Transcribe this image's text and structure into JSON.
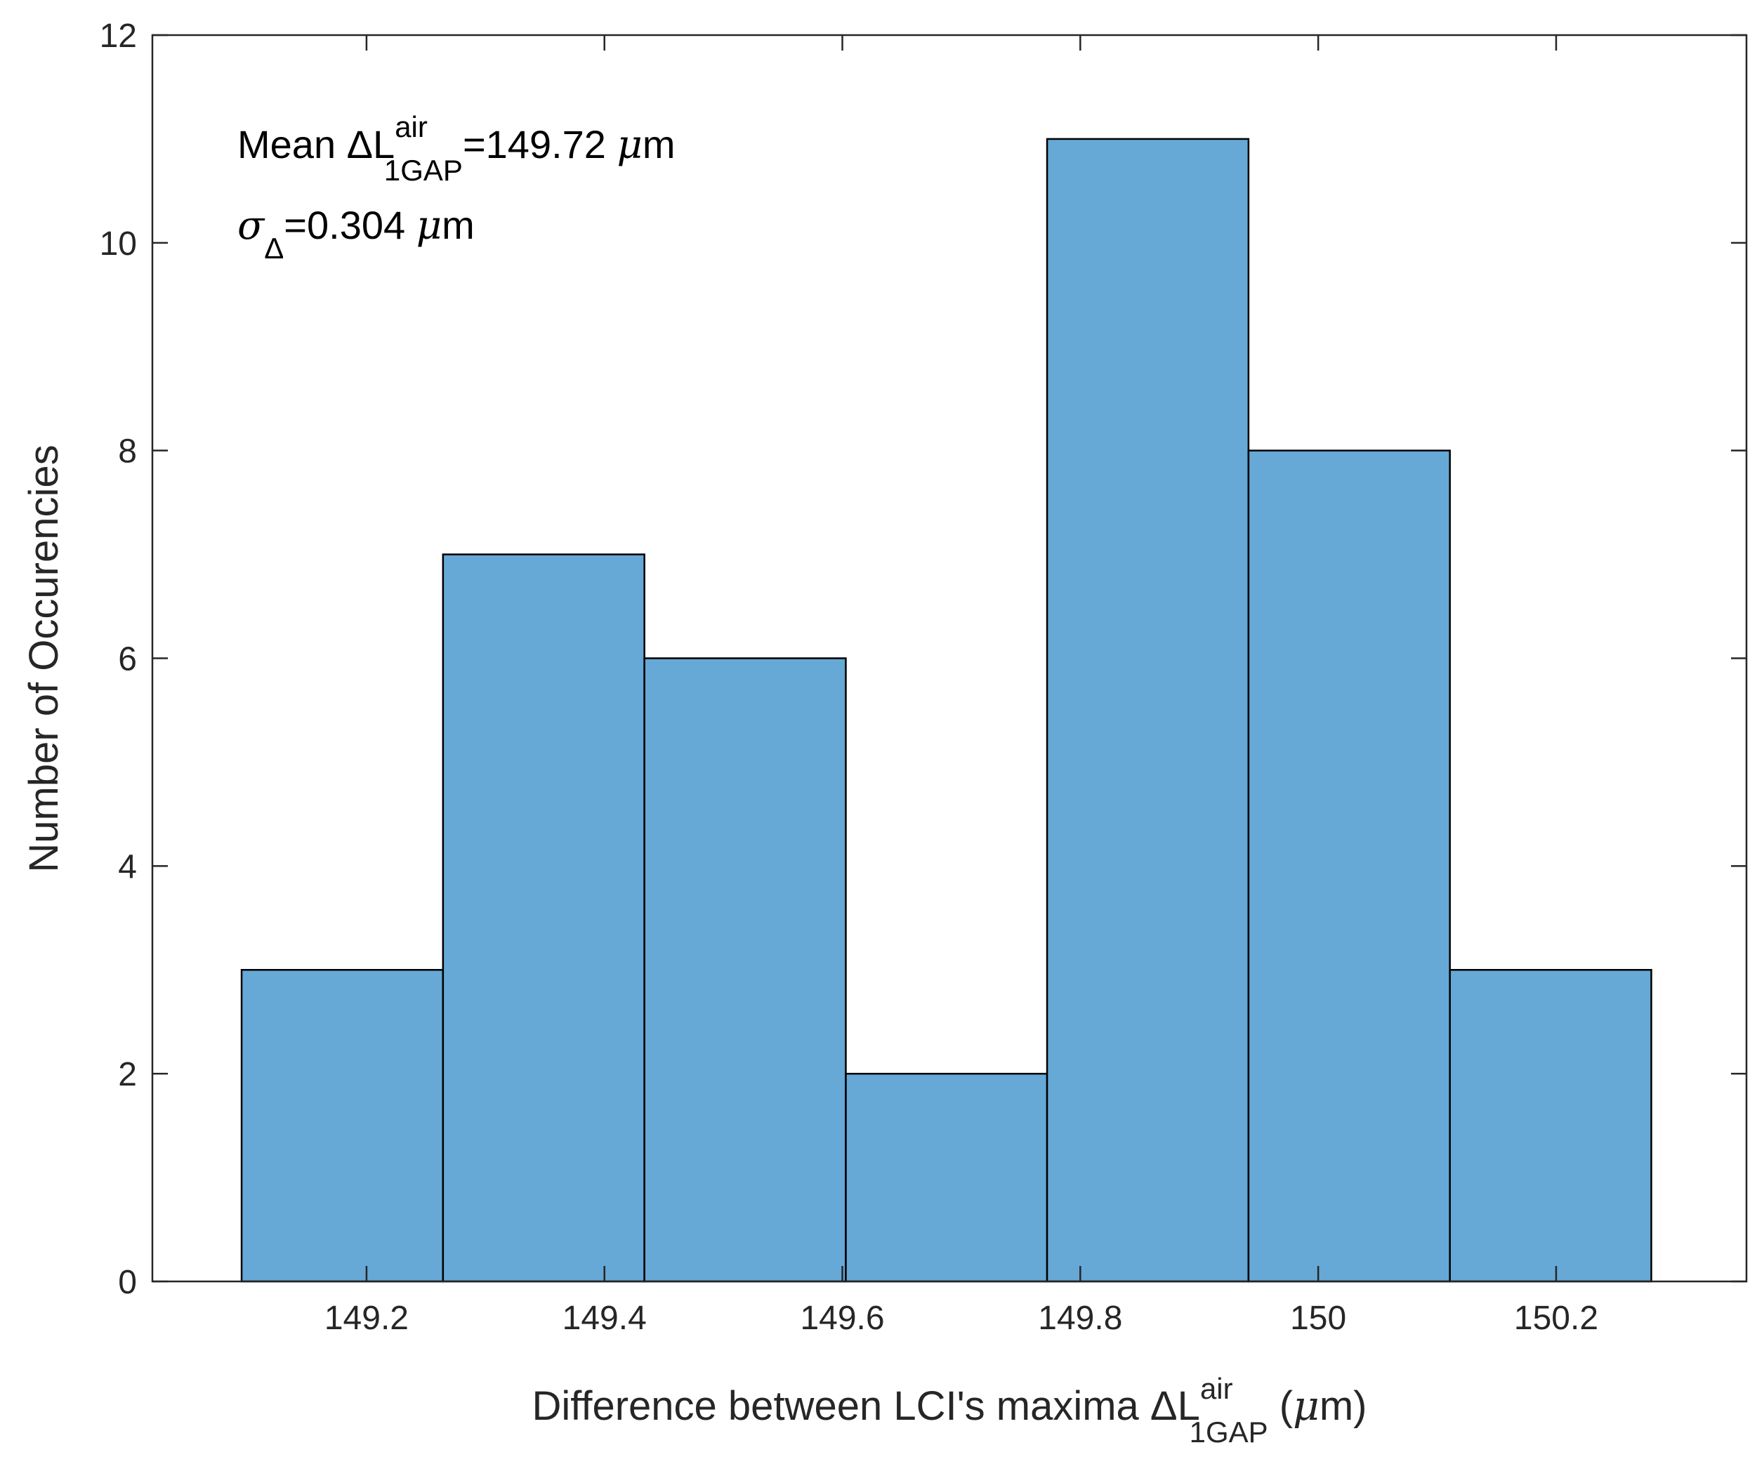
{
  "colors": {
    "bar_fill": "#66a8d6",
    "bar_edge": "#000000",
    "axis": "#262626",
    "text": "#262626"
  },
  "chart_data": {
    "type": "histogram",
    "bin_edges": [
      149.095,
      149.2643,
      149.4336,
      149.6029,
      149.7721,
      149.9414,
      150.1107,
      150.28
    ],
    "counts": [
      3,
      7,
      6,
      2,
      11,
      8,
      3
    ],
    "xlim": [
      149.02,
      150.36
    ],
    "ylim": [
      0,
      12
    ],
    "xticks": [
      149.2,
      149.4,
      149.6,
      149.8,
      150,
      150.2
    ],
    "xtick_labels": [
      "149.2",
      "149.4",
      "149.6",
      "149.8",
      "150",
      "150.2"
    ],
    "yticks": [
      0,
      2,
      4,
      6,
      8,
      10,
      12
    ],
    "ytick_labels": [
      "0",
      "2",
      "4",
      "6",
      "8",
      "10",
      "12"
    ],
    "ylabel": "Number of Occurencies",
    "xlabel": {
      "prefix": "Difference between LCI's maxima ",
      "delta": "Δ",
      "symbol": "L",
      "superscript": "air",
      "subscript": "1GAP",
      "paren_open": " (",
      "mu": "μ",
      "unit": "m)"
    },
    "annotations": {
      "mean": {
        "label": "Mean ",
        "delta": "Δ",
        "symbol": "L",
        "superscript": "air",
        "subscript": "1GAP",
        "value": "=149.72 ",
        "mu": "μ",
        "unit": "m"
      },
      "sigma": {
        "sigma": "σ",
        "subscript": "Δ",
        "value": "=0.304 ",
        "mu": "μ",
        "unit": "m"
      }
    }
  }
}
